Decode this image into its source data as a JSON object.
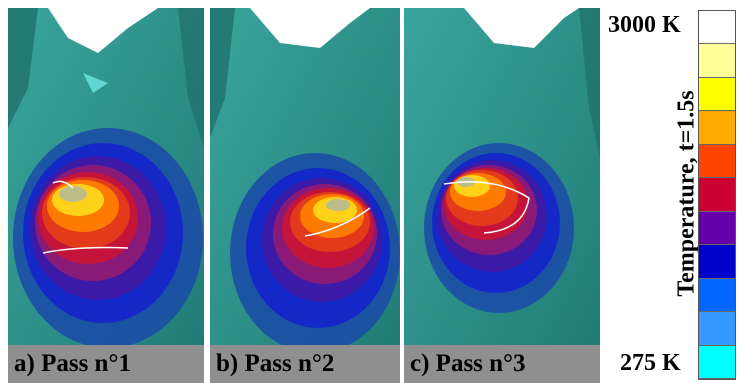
{
  "panels": [
    {
      "caption": "a) Pass n°1"
    },
    {
      "caption": "b) Pass n°2"
    },
    {
      "caption": "c) Pass n°3"
    }
  ],
  "scale": {
    "max_label": "3000 K",
    "min_label": "275 K",
    "title": "Temperature, t=1.5s",
    "colors": [
      "#ffffff",
      "#ffff99",
      "#ffff00",
      "#ffaa00",
      "#ff4400",
      "#cc0033",
      "#6600aa",
      "#0000cc",
      "#0066ff",
      "#3399ff",
      "#00ffff"
    ]
  },
  "colors": {
    "mesh": "#2f9a92",
    "mesh_dark": "#1f6f6a",
    "caption_bg": "#8f8f8f"
  }
}
